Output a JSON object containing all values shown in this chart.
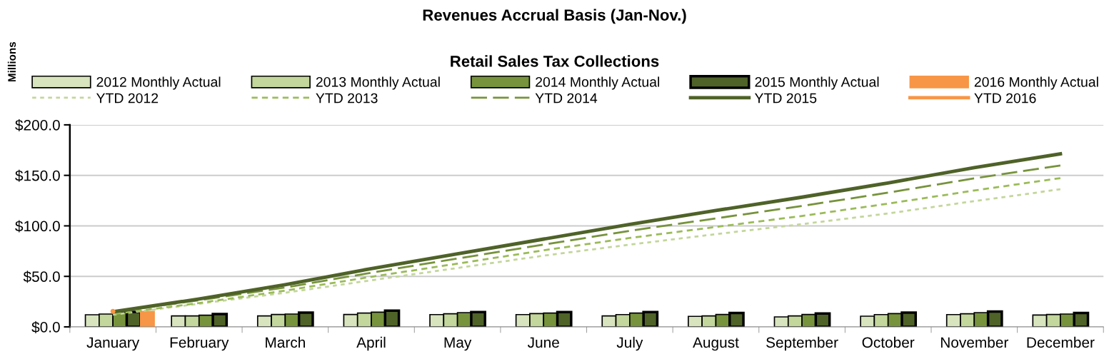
{
  "chart_data": {
    "type": "bar",
    "title": "Revenues Accrual Basis (Jan-Nov.)",
    "subtitle": "Retail Sales Tax Collections",
    "ylabel": "Millions",
    "categories": [
      "January",
      "February",
      "March",
      "April",
      "May",
      "June",
      "July",
      "August",
      "September",
      "October",
      "November",
      "December"
    ],
    "series": [
      {
        "name": "2012 Monthly Actual",
        "color": "#d7e4bd",
        "values": [
          12.0,
          10.9,
          10.9,
          12.3,
          12.2,
          12.2,
          10.9,
          10.4,
          9.9,
          10.6,
          12.2,
          11.7
        ]
      },
      {
        "name": "2013 Monthly Actual",
        "color": "#c3d69b",
        "values": [
          12.7,
          10.9,
          12.3,
          13.7,
          13.0,
          13.2,
          12.2,
          10.9,
          10.9,
          12.2,
          13.0,
          12.3
        ]
      },
      {
        "name": "2014 Monthly Actual",
        "color": "#77933c",
        "values": [
          14.8,
          11.5,
          12.7,
          14.6,
          14.1,
          13.7,
          13.7,
          12.3,
          12.3,
          13.2,
          14.1,
          12.7
        ]
      },
      {
        "name": "2015 Monthly Actual",
        "color": "#4f6228",
        "values": [
          14.9,
          12.7,
          14.1,
          16.0,
          14.6,
          14.6,
          14.6,
          13.7,
          13.2,
          14.1,
          15.1,
          13.7
        ]
      },
      {
        "name": "2016 Monthly Actual",
        "color": "#f79646",
        "values": [
          15.3,
          null,
          null,
          null,
          null,
          null,
          null,
          null,
          null,
          null,
          null,
          null
        ]
      },
      {
        "name": "YTD 2012",
        "type": "line",
        "color": "#c3d69b",
        "line_style": "dotted",
        "values": [
          12.0,
          22.9,
          33.8,
          46.1,
          58.3,
          70.5,
          81.4,
          91.8,
          101.7,
          112.3,
          124.5,
          136.2
        ]
      },
      {
        "name": "YTD 2013",
        "type": "line",
        "color": "#9bbb59",
        "line_style": "dashed",
        "values": [
          12.7,
          23.6,
          35.9,
          49.6,
          62.6,
          75.8,
          88.0,
          98.9,
          109.8,
          122.0,
          135.0,
          147.3
        ]
      },
      {
        "name": "YTD 2014",
        "type": "line",
        "color": "#77933c",
        "line_style": "dashed",
        "values": [
          14.8,
          26.3,
          39.0,
          53.6,
          67.7,
          81.4,
          95.1,
          107.4,
          119.7,
          132.9,
          147.0,
          159.7
        ]
      },
      {
        "name": "YTD 2015",
        "type": "line",
        "color": "#4f6228",
        "line_style": "solid",
        "values": [
          14.9,
          27.6,
          41.7,
          57.7,
          72.3,
          86.9,
          101.5,
          115.2,
          128.4,
          142.5,
          157.6,
          171.3
        ]
      },
      {
        "name": "YTD 2016",
        "type": "line",
        "color": "#f79646",
        "line_style": "solid",
        "marker": "circle",
        "values": [
          15.3,
          null,
          null,
          null,
          null,
          null,
          null,
          null,
          null,
          null,
          null,
          null
        ]
      }
    ],
    "ylim": [
      0,
      200
    ],
    "yticks": [
      {
        "value": 0,
        "label": "$0.0"
      },
      {
        "value": 50,
        "label": "$50.0"
      },
      {
        "value": 100,
        "label": "$100.0"
      },
      {
        "value": 150,
        "label": "$150.0"
      },
      {
        "value": 200,
        "label": "$200.0"
      }
    ],
    "grid": "y",
    "legend": "top"
  }
}
